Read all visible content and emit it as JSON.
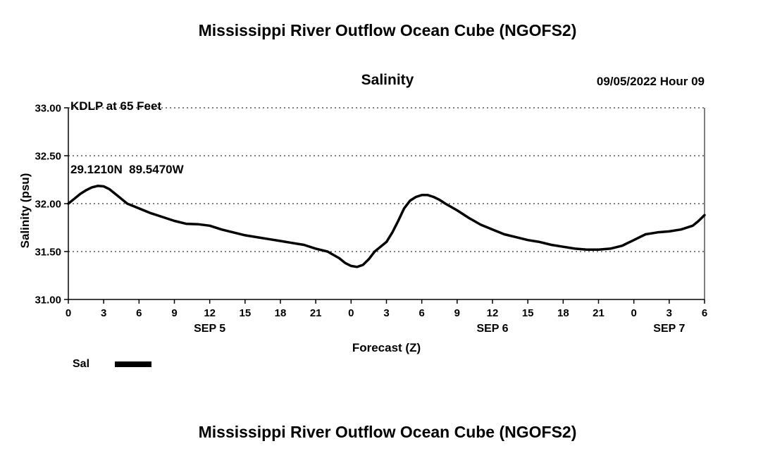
{
  "page": {
    "title_top": "Mississippi River Outflow Ocean Cube (NGOFS2)",
    "title_bottom": "Mississippi River Outflow Ocean Cube (NGOFS2)"
  },
  "header": {
    "station": "KDLP at 65 Feet",
    "coords": "29.1210N  89.5470W",
    "plot_title": "Salinity",
    "run_time": "09/05/2022 Hour 09"
  },
  "legend": {
    "label": "Sal"
  },
  "chart_data": {
    "type": "line",
    "title": "Salinity",
    "xlabel": "Forecast (Z)",
    "ylabel": "Salinity (psu)",
    "xlim": [
      0,
      54
    ],
    "ylim": [
      31.0,
      33.0
    ],
    "grid": "dotted-horizontal",
    "legend_position": "bottom-left",
    "line_color": "#000000",
    "line_width": 3.5,
    "yticks": [
      31.0,
      31.5,
      32.0,
      32.5,
      33.0
    ],
    "ytick_labels": [
      "31.00",
      "31.50",
      "32.00",
      "32.50",
      "33.00"
    ],
    "xticks": [
      0,
      3,
      6,
      9,
      12,
      15,
      18,
      21,
      24,
      27,
      30,
      33,
      36,
      39,
      42,
      45,
      48,
      51,
      54
    ],
    "xtick_labels": [
      "0",
      "3",
      "6",
      "9",
      "12",
      "15",
      "18",
      "21",
      "0",
      "3",
      "6",
      "9",
      "12",
      "15",
      "18",
      "21",
      "0",
      "3",
      "6"
    ],
    "date_labels": [
      {
        "hour": 12,
        "label": "SEP 5"
      },
      {
        "hour": 36,
        "label": "SEP 6"
      },
      {
        "hour": 51,
        "label": "SEP 7"
      }
    ],
    "series": [
      {
        "name": "Sal",
        "x": [
          0,
          0.5,
          1,
          1.5,
          2,
          2.5,
          3,
          3.5,
          4,
          4.5,
          5,
          6,
          7,
          8,
          9,
          10,
          11,
          12,
          13,
          14,
          15,
          16,
          17,
          18,
          19,
          20,
          21,
          22,
          23,
          23.5,
          24,
          24.5,
          25,
          25.5,
          26,
          26.5,
          27,
          27.5,
          28,
          28.5,
          29,
          29.5,
          30,
          30.5,
          31,
          31.5,
          32,
          33,
          34,
          35,
          36,
          37,
          38,
          39,
          40,
          41,
          42,
          43,
          44,
          45,
          46,
          47,
          48,
          48.5,
          49,
          49.5,
          50,
          51,
          52,
          53,
          53.5,
          54
        ],
        "y": [
          32.0,
          32.05,
          32.1,
          32.14,
          32.17,
          32.185,
          32.18,
          32.15,
          32.1,
          32.05,
          32.0,
          31.95,
          31.9,
          31.86,
          31.82,
          31.79,
          31.785,
          31.77,
          31.73,
          31.7,
          31.67,
          31.65,
          31.63,
          31.61,
          31.59,
          31.57,
          31.53,
          31.5,
          31.43,
          31.38,
          31.35,
          31.34,
          31.36,
          31.42,
          31.5,
          31.55,
          31.6,
          31.7,
          31.82,
          31.95,
          32.03,
          32.07,
          32.09,
          32.09,
          32.07,
          32.04,
          32.0,
          31.93,
          31.85,
          31.78,
          31.73,
          31.68,
          31.65,
          31.62,
          31.6,
          31.57,
          31.55,
          31.53,
          31.52,
          31.52,
          31.53,
          31.56,
          31.62,
          31.65,
          31.68,
          31.69,
          31.7,
          31.71,
          31.73,
          31.77,
          31.82,
          31.88
        ]
      }
    ]
  }
}
